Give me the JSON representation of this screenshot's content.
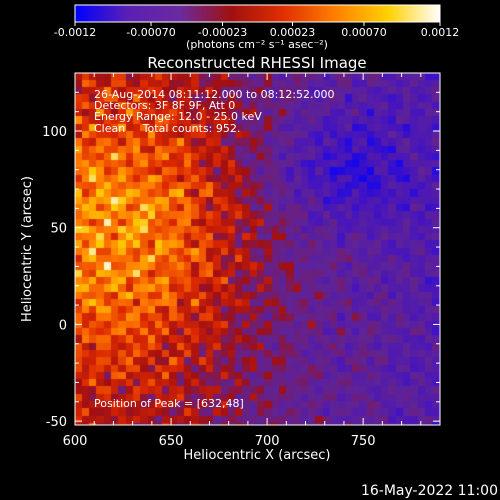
{
  "chart_data": {
    "type": "heatmap",
    "title": "Reconstructed RHESSI Image",
    "xlabel": "Heliocentric X (arcsec)",
    "ylabel": "Heliocentric Y (arcsec)",
    "xlim": [
      600,
      790
    ],
    "ylim": [
      -52,
      130
    ],
    "x_ticks": [
      600,
      650,
      700,
      750
    ],
    "y_ticks": [
      -50,
      0,
      50,
      100
    ],
    "colorbar": {
      "min": -0.0012,
      "max": 0.0012,
      "ticks": [
        "-0.0012",
        "-0.00070",
        "-0.00023",
        "0.00023",
        "0.00070",
        "0.0012"
      ],
      "tick_values": [
        -0.0012,
        -0.0007,
        -0.00023,
        0.00023,
        0.0007,
        0.0012
      ],
      "unit_label": "(photons cm⁻² s⁻¹ asec⁻²)",
      "colors": [
        "#0000ff",
        "#5a1fb5",
        "#6a2aa0",
        "#a01010",
        "#e03000",
        "#ff8000",
        "#ffd000",
        "#ffffff"
      ]
    },
    "annotations": [
      "26-Aug-2014 08:11:12.000 to 08:12:52.000",
      "Detectors: 3F 8F 9F, Att 0",
      "Energy Range: 12.0 - 25.0 keV",
      "Clean     Total counts: 952.",
      "Position of Peak = [632,48]"
    ],
    "peak_position": [
      632,
      48
    ],
    "grid": false
  },
  "footer": {
    "timestamp": "16-May-2022 11:00"
  }
}
